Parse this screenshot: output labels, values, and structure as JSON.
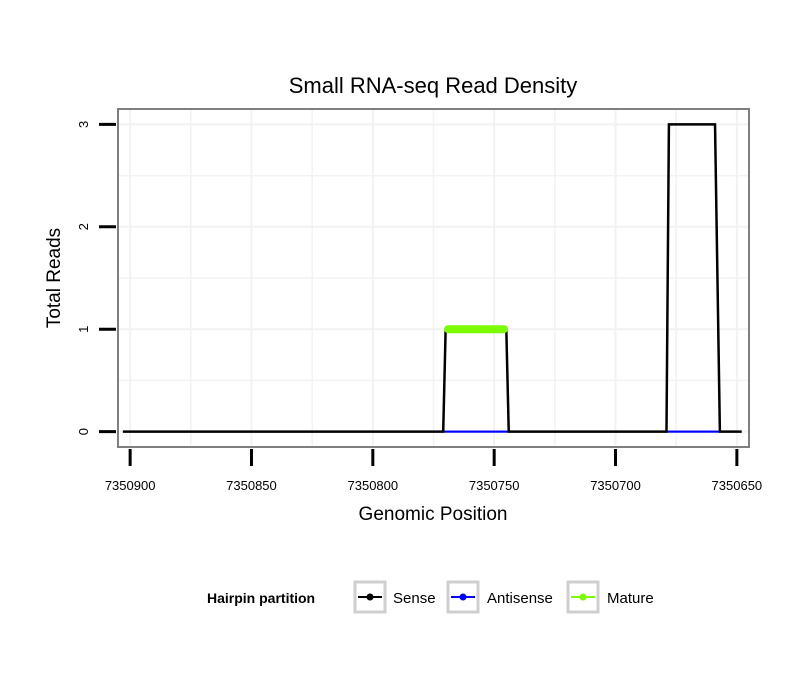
{
  "chart_data": {
    "type": "line",
    "title": "Small RNA-seq Read Density",
    "xlabel": "Genomic Position",
    "ylabel": "Total Reads",
    "x_reversed": true,
    "xlim": [
      7350905,
      7350645
    ],
    "ylim": [
      -0.15,
      3.15
    ],
    "x_ticks": [
      7350900,
      7350850,
      7350800,
      7350750,
      7350700,
      7350650
    ],
    "x_tick_labels": [
      "7350900",
      "7350850",
      "7350800",
      "7350750",
      "7350700",
      "7350650"
    ],
    "y_ticks": [
      0,
      1,
      2,
      3
    ],
    "y_tick_labels": [
      "0",
      "1",
      "2",
      "3"
    ],
    "grid": true,
    "legend": {
      "title": "Hairpin partition",
      "position": "bottom",
      "entries": [
        {
          "label": "Sense",
          "color": "#000000"
        },
        {
          "label": "Antisense",
          "color": "#0000ff"
        },
        {
          "label": "Mature",
          "color": "#7cfc00"
        }
      ]
    },
    "series": [
      {
        "name": "Sense",
        "color": "#000000",
        "x": [
          7350903,
          7350771,
          7350770,
          7350745,
          7350744,
          7350679,
          7350678,
          7350659,
          7350657,
          7350648
        ],
        "y": [
          0,
          0,
          1,
          1,
          0,
          0,
          3,
          3,
          0,
          0
        ]
      },
      {
        "name": "Antisense",
        "color": "#0000ff",
        "x": [
          7350771,
          7350744,
          7350679,
          7350657
        ],
        "y": [
          0,
          0,
          0,
          0
        ],
        "segments": [
          [
            0,
            1
          ],
          [
            2,
            3
          ]
        ]
      },
      {
        "name": "Mature",
        "color": "#7cfc00",
        "x": [
          7350769,
          7350746
        ],
        "y": [
          1,
          1
        ]
      }
    ]
  }
}
